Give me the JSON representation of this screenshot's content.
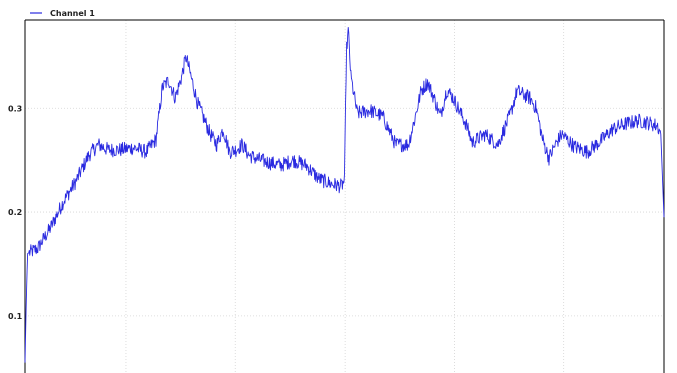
{
  "chart_data": {
    "type": "line",
    "title": "",
    "xlabel": "",
    "ylabel": "",
    "ylim": [
      0.045,
      0.385
    ],
    "yticks": [
      0.1,
      0.2,
      0.3
    ],
    "ytick_labels": [
      "0.1",
      "0.2",
      "0.3"
    ],
    "xlim": [
      0,
      1
    ],
    "x_grid_values": [
      0.158,
      0.329,
      0.501,
      0.672,
      0.843
    ],
    "grid": true,
    "legend_position": "top-left",
    "series": [
      {
        "name": "Channel 1",
        "color": "#2a2ae0",
        "keypoints": [
          [
            0.0,
            0.055
          ],
          [
            0.002,
            0.115
          ],
          [
            0.004,
            0.16
          ],
          [
            0.02,
            0.165
          ],
          [
            0.04,
            0.185
          ],
          [
            0.06,
            0.21
          ],
          [
            0.08,
            0.23
          ],
          [
            0.1,
            0.255
          ],
          [
            0.115,
            0.265
          ],
          [
            0.13,
            0.26
          ],
          [
            0.15,
            0.26
          ],
          [
            0.17,
            0.262
          ],
          [
            0.19,
            0.258
          ],
          [
            0.205,
            0.27
          ],
          [
            0.215,
            0.32
          ],
          [
            0.225,
            0.327
          ],
          [
            0.235,
            0.31
          ],
          [
            0.245,
            0.33
          ],
          [
            0.252,
            0.35
          ],
          [
            0.26,
            0.33
          ],
          [
            0.27,
            0.305
          ],
          [
            0.28,
            0.29
          ],
          [
            0.29,
            0.275
          ],
          [
            0.3,
            0.265
          ],
          [
            0.31,
            0.28
          ],
          [
            0.32,
            0.258
          ],
          [
            0.33,
            0.26
          ],
          [
            0.34,
            0.265
          ],
          [
            0.35,
            0.255
          ],
          [
            0.36,
            0.252
          ],
          [
            0.38,
            0.248
          ],
          [
            0.4,
            0.245
          ],
          [
            0.42,
            0.25
          ],
          [
            0.44,
            0.245
          ],
          [
            0.46,
            0.232
          ],
          [
            0.48,
            0.227
          ],
          [
            0.495,
            0.225
          ],
          [
            0.5,
            0.23
          ],
          [
            0.503,
            0.355
          ],
          [
            0.506,
            0.375
          ],
          [
            0.51,
            0.33
          ],
          [
            0.52,
            0.295
          ],
          [
            0.54,
            0.298
          ],
          [
            0.56,
            0.292
          ],
          [
            0.58,
            0.265
          ],
          [
            0.6,
            0.265
          ],
          [
            0.61,
            0.29
          ],
          [
            0.62,
            0.317
          ],
          [
            0.63,
            0.325
          ],
          [
            0.64,
            0.31
          ],
          [
            0.65,
            0.292
          ],
          [
            0.66,
            0.318
          ],
          [
            0.67,
            0.31
          ],
          [
            0.69,
            0.285
          ],
          [
            0.7,
            0.267
          ],
          [
            0.72,
            0.275
          ],
          [
            0.74,
            0.265
          ],
          [
            0.76,
            0.295
          ],
          [
            0.77,
            0.317
          ],
          [
            0.78,
            0.313
          ],
          [
            0.79,
            0.31
          ],
          [
            0.8,
            0.3
          ],
          [
            0.81,
            0.27
          ],
          [
            0.82,
            0.252
          ],
          [
            0.83,
            0.265
          ],
          [
            0.84,
            0.275
          ],
          [
            0.86,
            0.263
          ],
          [
            0.88,
            0.258
          ],
          [
            0.9,
            0.268
          ],
          [
            0.92,
            0.28
          ],
          [
            0.94,
            0.285
          ],
          [
            0.96,
            0.288
          ],
          [
            0.975,
            0.286
          ],
          [
            0.99,
            0.283
          ],
          [
            0.995,
            0.275
          ],
          [
            1.0,
            0.195
          ]
        ]
      }
    ]
  },
  "colors": {
    "background": "#ffffff",
    "grid": "#d4d4d4",
    "axis": "#000000",
    "series": "#2a2ae0"
  }
}
